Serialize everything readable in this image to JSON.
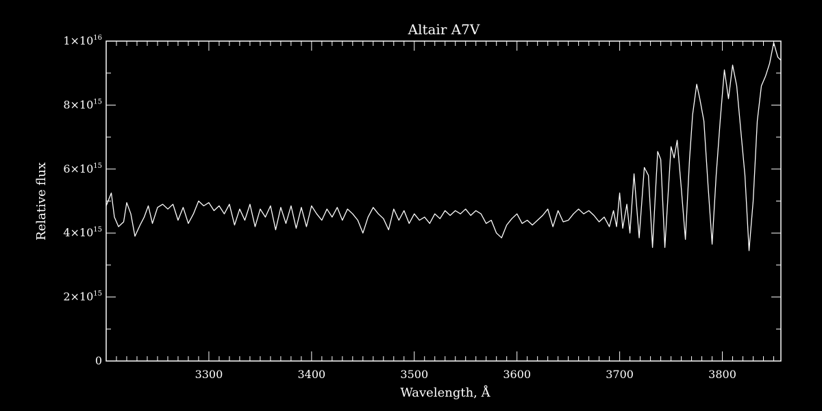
{
  "chart_data": {
    "type": "line",
    "title": "Altair   A7V",
    "xlabel": "Wavelength, Å",
    "ylabel": "Relative flux",
    "xlim": [
      3200,
      3857
    ],
    "ylim": [
      0,
      1e+16
    ],
    "x_major_ticks": [
      3300,
      3400,
      3500,
      3600,
      3700,
      3800
    ],
    "x_minor_step": 10,
    "y_major_ticks": [
      {
        "value": 0,
        "mantissa": "0",
        "exponent": ""
      },
      {
        "value": 2000000000000000.0,
        "mantissa": "2×10",
        "exponent": "15"
      },
      {
        "value": 4000000000000000.0,
        "mantissa": "4×10",
        "exponent": "15"
      },
      {
        "value": 6000000000000000.0,
        "mantissa": "6×10",
        "exponent": "15"
      },
      {
        "value": 8000000000000000.0,
        "mantissa": "8×10",
        "exponent": "15"
      },
      {
        "value": 1e+16,
        "mantissa": "1×10",
        "exponent": "16"
      }
    ],
    "y_minor_step": 1000000000000000.0,
    "grid": false,
    "line_color": "#ffffff",
    "background": "#000000",
    "series": [
      {
        "points": [
          [
            3200,
            4850000000000000.0
          ],
          [
            3205,
            5250000000000000.0
          ],
          [
            3208,
            4500000000000000.0
          ],
          [
            3212,
            4200000000000000.0
          ],
          [
            3217,
            4350000000000000.0
          ],
          [
            3220,
            4950000000000000.0
          ],
          [
            3224,
            4600000000000000.0
          ],
          [
            3228,
            3900000000000000.0
          ],
          [
            3233,
            4250000000000000.0
          ],
          [
            3237,
            4500000000000000.0
          ],
          [
            3241,
            4850000000000000.0
          ],
          [
            3245,
            4300000000000000.0
          ],
          [
            3250,
            4800000000000000.0
          ],
          [
            3255,
            4900000000000000.0
          ],
          [
            3260,
            4750000000000000.0
          ],
          [
            3265,
            4900000000000000.0
          ],
          [
            3270,
            4400000000000000.0
          ],
          [
            3275,
            4800000000000000.0
          ],
          [
            3280,
            4300000000000000.0
          ],
          [
            3285,
            4600000000000000.0
          ],
          [
            3290,
            5000000000000000.0
          ],
          [
            3295,
            4850000000000000.0
          ],
          [
            3300,
            4950000000000000.0
          ],
          [
            3305,
            4700000000000000.0
          ],
          [
            3310,
            4850000000000000.0
          ],
          [
            3315,
            4600000000000000.0
          ],
          [
            3320,
            4900000000000000.0
          ],
          [
            3325,
            4250000000000000.0
          ],
          [
            3330,
            4750000000000000.0
          ],
          [
            3335,
            4400000000000000.0
          ],
          [
            3340,
            4900000000000000.0
          ],
          [
            3345,
            4200000000000000.0
          ],
          [
            3350,
            4750000000000000.0
          ],
          [
            3355,
            4500000000000000.0
          ],
          [
            3360,
            4850000000000000.0
          ],
          [
            3365,
            4100000000000000.0
          ],
          [
            3370,
            4800000000000000.0
          ],
          [
            3375,
            4300000000000000.0
          ],
          [
            3380,
            4850000000000000.0
          ],
          [
            3385,
            4150000000000000.0
          ],
          [
            3390,
            4800000000000000.0
          ],
          [
            3395,
            4200000000000000.0
          ],
          [
            3400,
            4850000000000000.0
          ],
          [
            3405,
            4600000000000000.0
          ],
          [
            3410,
            4400000000000000.0
          ],
          [
            3415,
            4750000000000000.0
          ],
          [
            3420,
            4500000000000000.0
          ],
          [
            3425,
            4800000000000000.0
          ],
          [
            3430,
            4400000000000000.0
          ],
          [
            3435,
            4750000000000000.0
          ],
          [
            3440,
            4600000000000000.0
          ],
          [
            3445,
            4400000000000000.0
          ],
          [
            3450,
            4000000000000000.0
          ],
          [
            3455,
            4500000000000000.0
          ],
          [
            3460,
            4800000000000000.0
          ],
          [
            3465,
            4600000000000000.0
          ],
          [
            3470,
            4450000000000000.0
          ],
          [
            3475,
            4100000000000000.0
          ],
          [
            3480,
            4750000000000000.0
          ],
          [
            3485,
            4400000000000000.0
          ],
          [
            3490,
            4700000000000000.0
          ],
          [
            3495,
            4300000000000000.0
          ],
          [
            3500,
            4600000000000000.0
          ],
          [
            3505,
            4400000000000000.0
          ],
          [
            3510,
            4500000000000000.0
          ],
          [
            3515,
            4300000000000000.0
          ],
          [
            3520,
            4600000000000000.0
          ],
          [
            3525,
            4450000000000000.0
          ],
          [
            3530,
            4700000000000000.0
          ],
          [
            3535,
            4550000000000000.0
          ],
          [
            3540,
            4700000000000000.0
          ],
          [
            3545,
            4600000000000000.0
          ],
          [
            3550,
            4750000000000000.0
          ],
          [
            3555,
            4550000000000000.0
          ],
          [
            3560,
            4700000000000000.0
          ],
          [
            3565,
            4600000000000000.0
          ],
          [
            3570,
            4300000000000000.0
          ],
          [
            3575,
            4400000000000000.0
          ],
          [
            3580,
            4000000000000000.0
          ],
          [
            3585,
            3850000000000000.0
          ],
          [
            3590,
            4250000000000000.0
          ],
          [
            3595,
            4450000000000000.0
          ],
          [
            3600,
            4600000000000000.0
          ],
          [
            3605,
            4300000000000000.0
          ],
          [
            3610,
            4400000000000000.0
          ],
          [
            3615,
            4250000000000000.0
          ],
          [
            3620,
            4400000000000000.0
          ],
          [
            3625,
            4550000000000000.0
          ],
          [
            3630,
            4750000000000000.0
          ],
          [
            3635,
            4200000000000000.0
          ],
          [
            3640,
            4700000000000000.0
          ],
          [
            3645,
            4350000000000000.0
          ],
          [
            3650,
            4400000000000000.0
          ],
          [
            3655,
            4600000000000000.0
          ],
          [
            3660,
            4750000000000000.0
          ],
          [
            3665,
            4600000000000000.0
          ],
          [
            3670,
            4700000000000000.0
          ],
          [
            3675,
            4550000000000000.0
          ],
          [
            3680,
            4350000000000000.0
          ],
          [
            3685,
            4500000000000000.0
          ],
          [
            3690,
            4200000000000000.0
          ],
          [
            3694,
            4700000000000000.0
          ],
          [
            3697,
            4200000000000000.0
          ],
          [
            3700,
            5250000000000000.0
          ],
          [
            3703,
            4150000000000000.0
          ],
          [
            3707,
            4900000000000000.0
          ],
          [
            3710,
            4000000000000000.0
          ],
          [
            3714,
            5850000000000000.0
          ],
          [
            3719,
            3850000000000000.0
          ],
          [
            3724,
            6050000000000000.0
          ],
          [
            3728,
            5800000000000000.0
          ],
          [
            3732,
            3550000000000000.0
          ],
          [
            3737,
            6550000000000000.0
          ],
          [
            3740,
            6300000000000000.0
          ],
          [
            3744,
            3550000000000000.0
          ],
          [
            3750,
            6700000000000000.0
          ],
          [
            3753,
            6350000000000000.0
          ],
          [
            3756,
            6900000000000000.0
          ],
          [
            3760,
            5400000000000000.0
          ],
          [
            3764,
            3800000000000000.0
          ],
          [
            3768,
            6300000000000000.0
          ],
          [
            3771,
            7700000000000000.0
          ],
          [
            3775,
            8650000000000000.0
          ],
          [
            3778,
            8200000000000000.0
          ],
          [
            3782,
            7500000000000000.0
          ],
          [
            3786,
            5500000000000000.0
          ],
          [
            3790,
            3650000000000000.0
          ],
          [
            3794,
            5800000000000000.0
          ],
          [
            3798,
            7550000000000000.0
          ],
          [
            3802,
            9100000000000000.0
          ],
          [
            3806,
            8200000000000000.0
          ],
          [
            3810,
            9250000000000000.0
          ],
          [
            3814,
            8600000000000000.0
          ],
          [
            3818,
            7200000000000000.0
          ],
          [
            3822,
            5800000000000000.0
          ],
          [
            3826,
            3450000000000000.0
          ],
          [
            3830,
            5000000000000000.0
          ],
          [
            3834,
            7500000000000000.0
          ],
          [
            3838,
            8600000000000000.0
          ],
          [
            3842,
            8900000000000000.0
          ],
          [
            3846,
            9300000000000000.0
          ],
          [
            3850,
            9950000000000000.0
          ],
          [
            3854,
            9500000000000000.0
          ],
          [
            3857,
            9400000000000000.0
          ]
        ]
      }
    ]
  }
}
